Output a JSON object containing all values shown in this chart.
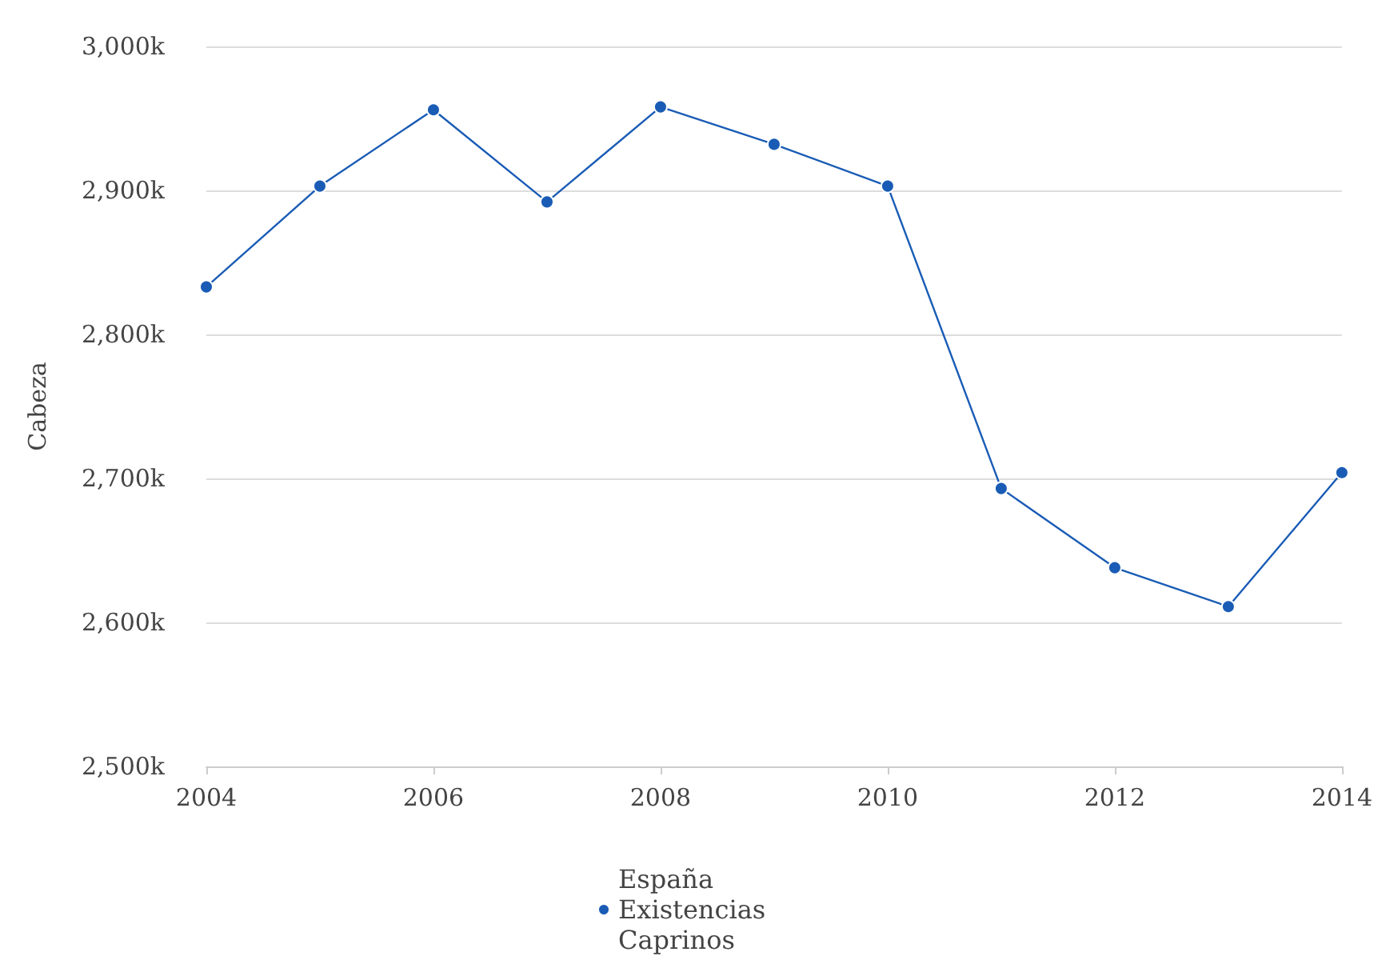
{
  "chart_data": {
    "type": "line",
    "ylabel": "Cabeza",
    "x": [
      2004,
      2005,
      2006,
      2007,
      2008,
      2009,
      2010,
      2011,
      2012,
      2013,
      2014
    ],
    "series": [
      {
        "name": "España Existencias Caprinos",
        "color": "#1a5cb5",
        "values": [
          2833000,
          2903000,
          2956000,
          2892000,
          2958000,
          2932000,
          2903000,
          2693000,
          2638000,
          2611000,
          2704000
        ]
      }
    ],
    "xlim": [
      2004,
      2014
    ],
    "xticks": [
      2004,
      2006,
      2008,
      2010,
      2012,
      2014
    ],
    "ylim": [
      2500000,
      3000000
    ],
    "yticks": [
      {
        "value": 2500000,
        "label": "2,500k"
      },
      {
        "value": 2600000,
        "label": "2,600k"
      },
      {
        "value": 2700000,
        "label": "2,700k"
      },
      {
        "value": 2800000,
        "label": "2,800k"
      },
      {
        "value": 2900000,
        "label": "2,900k"
      },
      {
        "value": 3000000,
        "label": "3,000k"
      }
    ],
    "grid": "y",
    "legend": "bottom",
    "marker": "circle",
    "line_style": "solid"
  }
}
